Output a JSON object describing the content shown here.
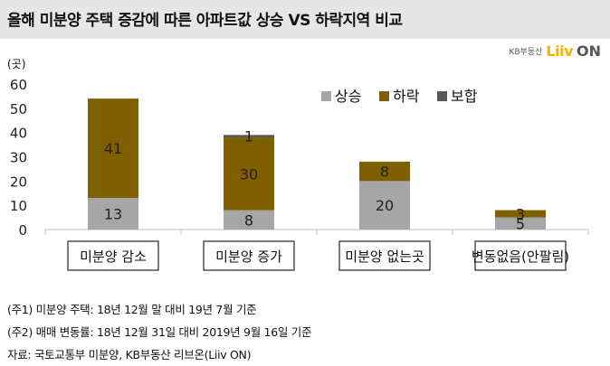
{
  "header": {
    "title": "올해 미분양 주택 증감에 따른 아파트값 상승 VS 하락지역 비교"
  },
  "brand": {
    "kb_label": "KB부동산",
    "liiv": "Liiv",
    "on": "ON"
  },
  "unit_label": "(곳)",
  "chart_data": {
    "type": "bar",
    "stacked": true,
    "title": "",
    "xlabel": "",
    "ylabel": "(곳)",
    "ylim": [
      0,
      60
    ],
    "yticks": [
      0,
      10,
      20,
      30,
      40,
      50,
      60
    ],
    "grid": false,
    "legend_position": "top-right",
    "categories": [
      "미분양 감소",
      "미분양 증가",
      "미분양 없는곳",
      "변동없음(안팔림)"
    ],
    "series": [
      {
        "name": "상승",
        "color": "#a6a6a6",
        "values": [
          13,
          8,
          20,
          5
        ]
      },
      {
        "name": "하락",
        "color": "#7f6000",
        "values": [
          41,
          30,
          8,
          3
        ]
      },
      {
        "name": "보합",
        "color": "#595959",
        "values": [
          0,
          1,
          0,
          0
        ]
      }
    ],
    "data_labels": [
      [
        "13",
        "8",
        "20",
        "5"
      ],
      [
        "41",
        "30",
        "8",
        "3"
      ],
      [
        "",
        "1",
        "",
        ""
      ]
    ]
  },
  "footnotes": [
    "(주1) 미분양 주택: 18년 12월 말 대비 19년 7월 기준",
    "(주2) 매매 변동률: 18년 12월 31일 대비 2019년 9월 16일 기준",
    "자료: 국토교통부 미분양, KB부동산 리브온(Liiv ON)"
  ]
}
